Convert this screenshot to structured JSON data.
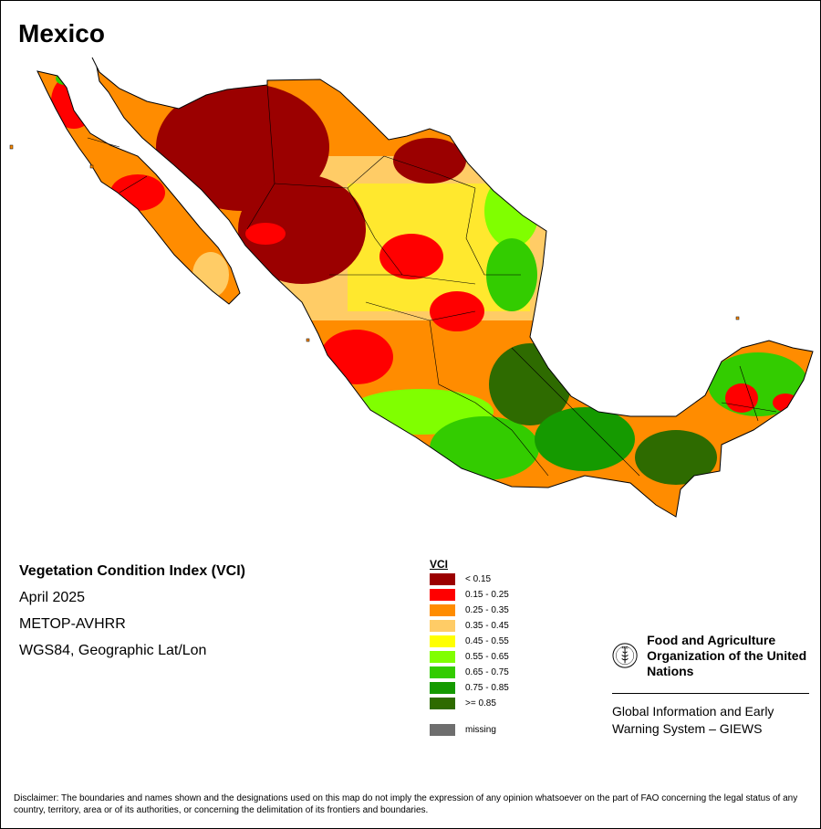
{
  "map": {
    "title": "Mexico",
    "subject": "Vegetation Condition Index (VCI)",
    "period": "April 2025",
    "sensor": "METOP-AVHRR",
    "projection": "WGS84, Geographic Lat/Lon"
  },
  "legend": {
    "title": "VCI",
    "classes": [
      {
        "label": "< 0.15",
        "color": "#9b0000"
      },
      {
        "label": "0.15 - 0.25",
        "color": "#ff0000"
      },
      {
        "label": "0.25 - 0.35",
        "color": "#ff8c00"
      },
      {
        "label": "0.35 - 0.45",
        "color": "#ffcc66"
      },
      {
        "label": "0.45 - 0.55",
        "color": "#ffff00"
      },
      {
        "label": "0.55 - 0.65",
        "color": "#80ff00"
      },
      {
        "label": "0.65 - 0.75",
        "color": "#33cc00"
      },
      {
        "label": "0.75 - 0.85",
        "color": "#159a00"
      },
      {
        "label": ">= 0.85",
        "color": "#2e6b00"
      }
    ],
    "missing": {
      "label": "missing",
      "color": "#6e6e6e"
    }
  },
  "fao": {
    "name": "Food and Agriculture Organization of the United Nations",
    "logo_text": "FAO",
    "logo_motto": "FIAT PANIS",
    "system": "Global Information and Early Warning System – GIEWS"
  },
  "disclaimer": "Disclaimer: The boundaries and names shown and the designations used on this map do not imply the expression of any opinion whatsoever on the part of FAO concerning the legal status of any country, territory, area or of its authorities, or concerning the delimitation of its frontiers and boundaries."
}
